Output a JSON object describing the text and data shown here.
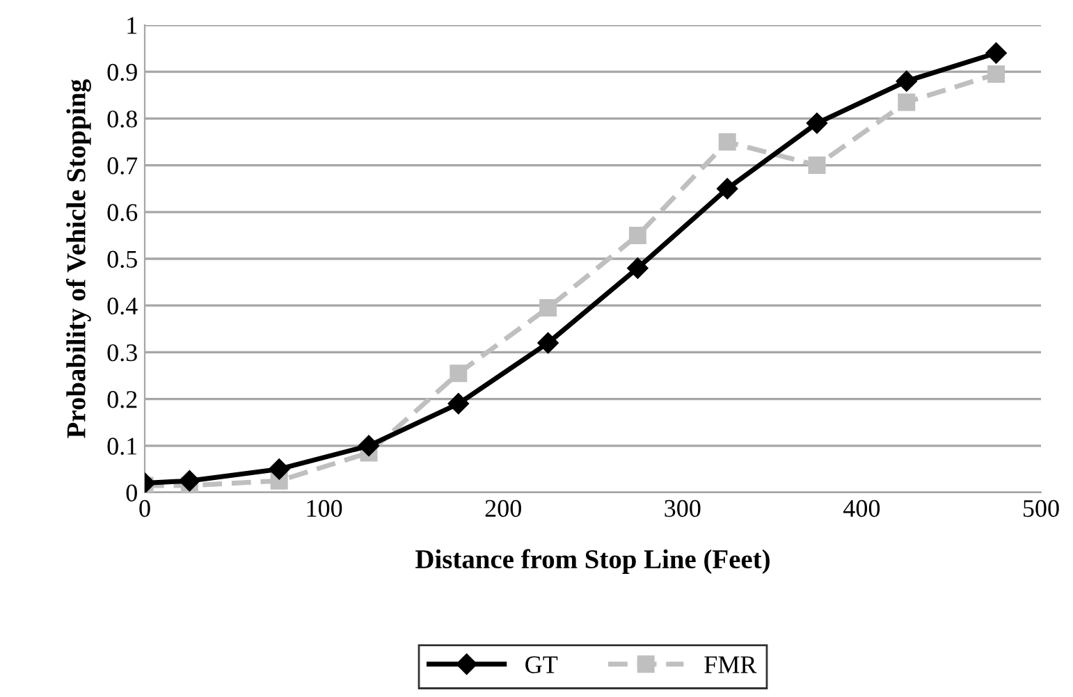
{
  "chart_data": {
    "type": "line",
    "xlabel": "Distance from Stop Line (Feet)",
    "ylabel": "Probability of Vehicle Stopping",
    "x": [
      0,
      25,
      75,
      125,
      175,
      225,
      275,
      325,
      375,
      425,
      475
    ],
    "series": [
      {
        "name": "GT",
        "color": "#000000",
        "marker": "diamond",
        "line_style": "solid",
        "values": [
          0.02,
          0.025,
          0.05,
          0.1,
          0.19,
          0.32,
          0.48,
          0.65,
          0.79,
          0.88,
          0.94
        ]
      },
      {
        "name": "FMR",
        "color": "#bfbfbf",
        "marker": "square",
        "line_style": "dashed",
        "values": [
          0.015,
          0.015,
          0.025,
          0.085,
          0.255,
          0.395,
          0.55,
          0.75,
          0.7,
          0.835,
          0.895
        ]
      }
    ],
    "xlim": [
      0,
      500
    ],
    "xticks": [
      0,
      100,
      200,
      300,
      400,
      500
    ],
    "ylim": [
      0,
      1
    ],
    "yticks": [
      0,
      0.1,
      0.2,
      0.3,
      0.4,
      0.5,
      0.6,
      0.7,
      0.8,
      0.9,
      1
    ],
    "grid": "y",
    "legend": "bottom"
  }
}
